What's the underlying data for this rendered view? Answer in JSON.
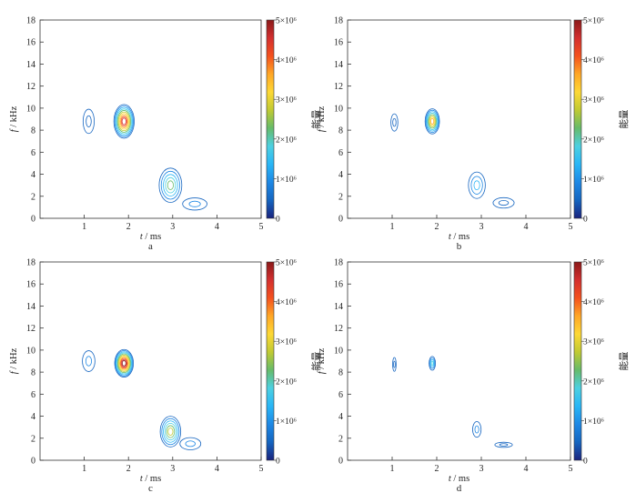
{
  "chart_data": [
    {
      "type": "contour",
      "panel_label": "a",
      "xlabel_var": "t",
      "xlabel_unit": " / ms",
      "ylabel_var": "f",
      "ylabel_unit": " / kHz",
      "xlim": [
        0,
        5
      ],
      "ylim": [
        0,
        18
      ],
      "xticks": [
        1,
        2,
        3,
        4,
        5
      ],
      "yticks": [
        0,
        2,
        4,
        6,
        8,
        10,
        12,
        14,
        16,
        18
      ],
      "colorbar": {
        "label": "能量",
        "min": 0,
        "max": 5000000,
        "ticks": [
          "0",
          "1×10⁶",
          "2×10⁶",
          "3×10⁶",
          "4×10⁶",
          "5×10⁶"
        ]
      },
      "components": [
        {
          "t": 1.1,
          "f": 8.8,
          "peak_energy": 300000,
          "spread_t": 0.16,
          "spread_f": 1.4
        },
        {
          "t": 1.9,
          "f": 8.8,
          "peak_energy": 4500000,
          "spread_t": 0.24,
          "spread_f": 1.6
        },
        {
          "t": 2.95,
          "f": 3.0,
          "peak_energy": 2000000,
          "spread_t": 0.28,
          "spread_f": 1.7
        },
        {
          "t": 3.5,
          "f": 1.3,
          "peak_energy": 400000,
          "spread_t": 0.35,
          "spread_f": 0.7
        }
      ]
    },
    {
      "type": "contour",
      "panel_label": "b",
      "xlabel_var": "t",
      "xlabel_unit": " / ms",
      "ylabel_var": "f",
      "ylabel_unit": " / kHz",
      "xlim": [
        0,
        5
      ],
      "ylim": [
        0,
        18
      ],
      "xticks": [
        1,
        2,
        3,
        4,
        5
      ],
      "yticks": [
        0,
        2,
        4,
        6,
        8,
        10,
        12,
        14,
        16,
        18
      ],
      "colorbar": {
        "label": "能量",
        "min": 0,
        "max": 5000000,
        "ticks": [
          "0",
          "1×10⁶",
          "2×10⁶",
          "3×10⁶",
          "4×10⁶",
          "5×10⁶"
        ]
      },
      "components": [
        {
          "t": 1.05,
          "f": 8.7,
          "peak_energy": 200000,
          "spread_t": 0.1,
          "spread_f": 1.0
        },
        {
          "t": 1.9,
          "f": 8.8,
          "peak_energy": 3500000,
          "spread_t": 0.17,
          "spread_f": 1.2
        },
        {
          "t": 2.9,
          "f": 3.0,
          "peak_energy": 1200000,
          "spread_t": 0.22,
          "spread_f": 1.4
        },
        {
          "t": 3.5,
          "f": 1.4,
          "peak_energy": 300000,
          "spread_t": 0.3,
          "spread_f": 0.6
        }
      ]
    },
    {
      "type": "contour",
      "panel_label": "c",
      "xlabel_var": "t",
      "xlabel_unit": " / ms",
      "ylabel_var": "f",
      "ylabel_unit": " / kHz",
      "xlim": [
        0,
        5
      ],
      "ylim": [
        0,
        18
      ],
      "xticks": [
        1,
        2,
        3,
        4,
        5
      ],
      "yticks": [
        0,
        2,
        4,
        6,
        8,
        10,
        12,
        14,
        16,
        18
      ],
      "colorbar": {
        "label": "能量",
        "min": 0,
        "max": 5000000,
        "ticks": [
          "0",
          "1×10⁶",
          "2×10⁶",
          "3×10⁶",
          "4×10⁶",
          "5×10⁶"
        ]
      },
      "components": [
        {
          "t": 1.1,
          "f": 9.0,
          "peak_energy": 400000,
          "spread_t": 0.18,
          "spread_f": 1.2
        },
        {
          "t": 1.9,
          "f": 8.8,
          "peak_energy": 4800000,
          "spread_t": 0.22,
          "spread_f": 1.3
        },
        {
          "t": 2.95,
          "f": 2.6,
          "peak_energy": 2600000,
          "spread_t": 0.25,
          "spread_f": 1.5
        },
        {
          "t": 3.4,
          "f": 1.5,
          "peak_energy": 700000,
          "spread_t": 0.3,
          "spread_f": 0.7
        }
      ]
    },
    {
      "type": "contour",
      "panel_label": "d",
      "xlabel_var": "t",
      "xlabel_unit": " / ms",
      "ylabel_var": "f",
      "ylabel_unit": " / kHz",
      "xlim": [
        0,
        5
      ],
      "ylim": [
        0,
        18
      ],
      "xticks": [
        1,
        2,
        3,
        4,
        5
      ],
      "yticks": [
        0,
        2,
        4,
        6,
        8,
        10,
        12,
        14,
        16,
        18
      ],
      "colorbar": {
        "label": "能量",
        "min": 0,
        "max": 5000000,
        "ticks": [
          "0",
          "1×10⁶",
          "2×10⁶",
          "3×10⁶",
          "4×10⁶",
          "5×10⁶"
        ]
      },
      "components": [
        {
          "t": 1.05,
          "f": 8.7,
          "peak_energy": 200000,
          "spread_t": 0.05,
          "spread_f": 0.8
        },
        {
          "t": 1.9,
          "f": 8.8,
          "peak_energy": 1500000,
          "spread_t": 0.08,
          "spread_f": 0.7
        },
        {
          "t": 2.9,
          "f": 2.8,
          "peak_energy": 500000,
          "spread_t": 0.12,
          "spread_f": 0.9
        },
        {
          "t": 3.5,
          "f": 1.4,
          "peak_energy": 200000,
          "spread_t": 0.25,
          "spread_f": 0.3
        }
      ]
    }
  ],
  "colormap": [
    "#1a237e",
    "#1565c0",
    "#1e88e5",
    "#29b6f6",
    "#4dd0e1",
    "#66bb6a",
    "#c0ca33",
    "#fdd835",
    "#ffa726",
    "#f4511e",
    "#d32f2f",
    "#8b1a1a"
  ]
}
